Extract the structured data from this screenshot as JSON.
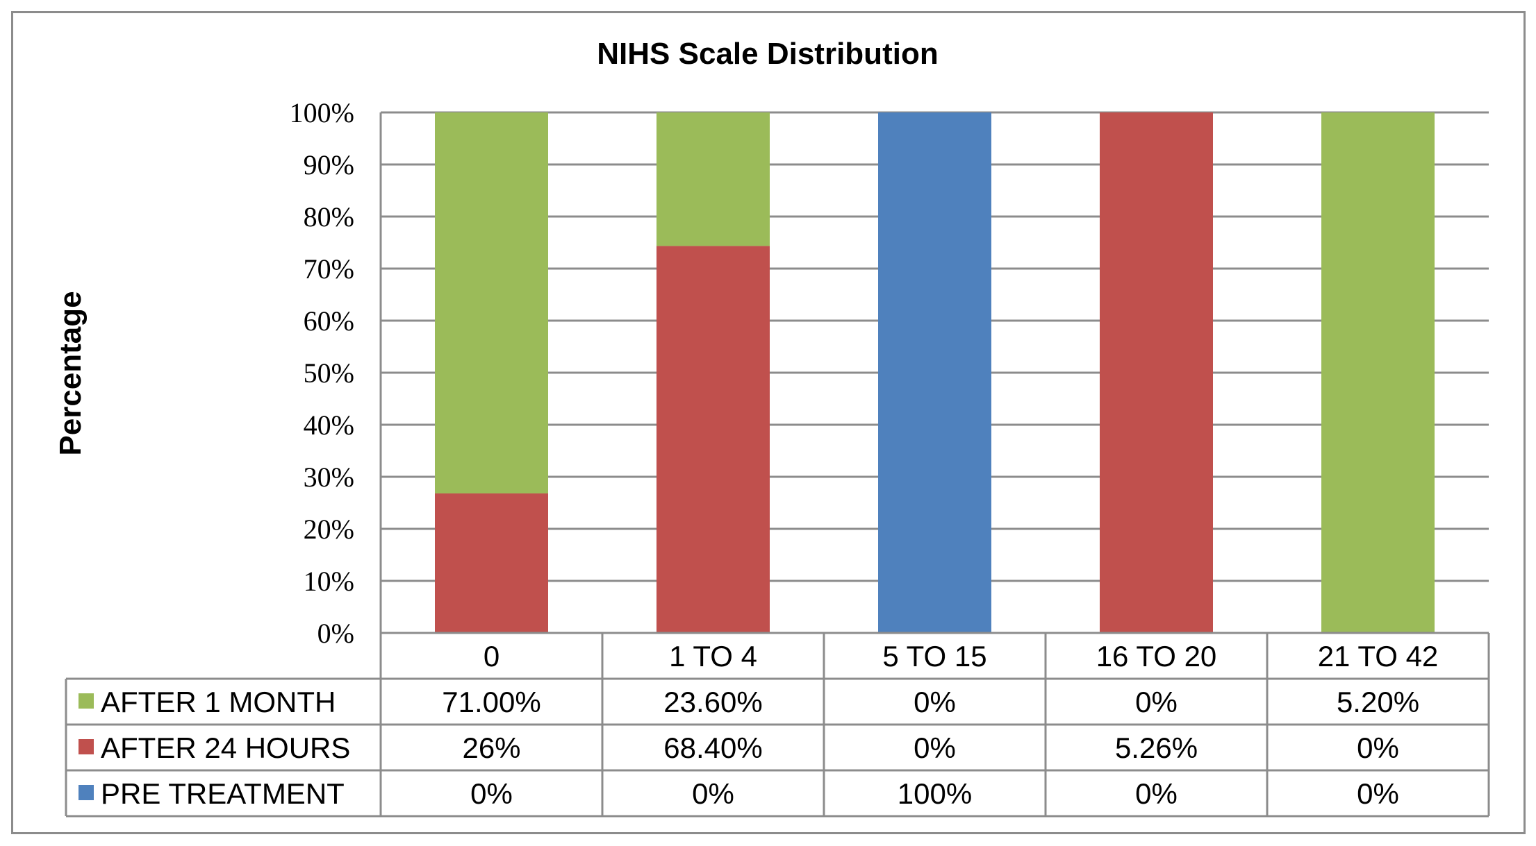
{
  "colors": {
    "after_1_month": "#9bbb59",
    "after_24_hours": "#c0504d",
    "pre_treatment": "#4f81bd",
    "grid": "#8c8c8c",
    "table_border": "#8c8c8c"
  },
  "chart_data": {
    "type": "bar",
    "stacked": true,
    "normalized": true,
    "title": "NIHS Scale Distribution",
    "xlabel": "",
    "ylabel": "Percentage",
    "ylim": [
      0,
      100
    ],
    "yticks": [
      "0%",
      "10%",
      "20%",
      "30%",
      "40%",
      "50%",
      "60%",
      "70%",
      "80%",
      "90%",
      "100%"
    ],
    "categories": [
      "0",
      "1 TO 4",
      "5 TO 15",
      "16 TO 20",
      "21 TO 42"
    ],
    "series": [
      {
        "key": "after_1_month",
        "name": "AFTER 1 MONTH",
        "values": [
          71.0,
          23.6,
          0,
          0,
          5.2
        ],
        "labels": [
          "71.00%",
          "23.60%",
          "0%",
          "0%",
          "5.20%"
        ]
      },
      {
        "key": "after_24_hours",
        "name": "AFTER 24 HOURS",
        "values": [
          26,
          68.4,
          0,
          5.26,
          0
        ],
        "labels": [
          "26%",
          "68.40%",
          "0%",
          "5.26%",
          "0%"
        ]
      },
      {
        "key": "pre_treatment",
        "name": "PRE TREATMENT",
        "values": [
          0,
          0,
          100,
          0,
          0
        ],
        "labels": [
          "0%",
          "0%",
          "100%",
          "0%",
          "0%"
        ]
      }
    ],
    "stack_order": [
      "pre_treatment",
      "after_24_hours",
      "after_1_month"
    ],
    "legend": "data-table-left",
    "grid": true
  }
}
